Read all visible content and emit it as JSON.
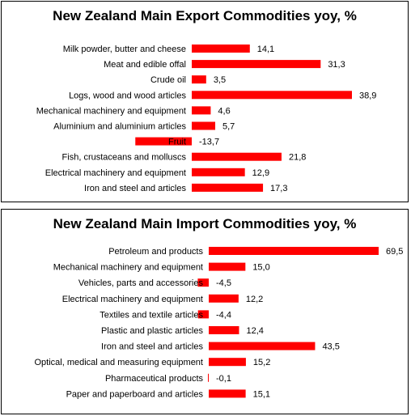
{
  "chart_data": [
    {
      "type": "bar",
      "orientation": "horizontal",
      "title": "New Zealand Main Export Commodities yoy, %",
      "categories": [
        "Milk powder, butter and cheese",
        "Meat and edible offal",
        "Crude oil",
        "Logs, wood and wood articles",
        "Mechanical machinery and equipment",
        "Aluminium and aluminium articles",
        "Fruit",
        "Fish, crustaceans and molluscs",
        "Electrical machinery and equipment",
        "Iron and steel and articles"
      ],
      "values": [
        14.1,
        31.3,
        3.5,
        38.9,
        4.6,
        5.7,
        -13.7,
        21.8,
        12.9,
        17.3
      ],
      "value_labels": [
        "14,1",
        "31,3",
        "3,5",
        "38,9",
        "4,6",
        "5,7",
        "-13,7",
        "21,8",
        "12,9",
        "17,3"
      ],
      "color": "#ff0000",
      "grid": false,
      "legend": "none"
    },
    {
      "type": "bar",
      "orientation": "horizontal",
      "title": "New Zealand Main Import Commodities yoy, %",
      "categories": [
        "Petroleum and products",
        "Mechanical machinery and equipment",
        "Vehicles, parts and accessories",
        "Electrical machinery and equipment",
        "Textiles and textile articles",
        "Plastic and plastic articles",
        "Iron and steel and articles",
        "Optical, medical and measuring equipment",
        "Pharmaceutical products",
        "Paper and paperboard and articles"
      ],
      "values": [
        69.5,
        15.0,
        -4.5,
        12.2,
        -4.4,
        12.4,
        43.5,
        15.2,
        -0.1,
        15.1
      ],
      "value_labels": [
        "69,5",
        "15,0",
        "-4,5",
        "12,2",
        "-4,4",
        "12,4",
        "43,5",
        "15,2",
        "-0,1",
        "15,1"
      ],
      "color": "#ff0000",
      "grid": false,
      "legend": "none"
    }
  ]
}
